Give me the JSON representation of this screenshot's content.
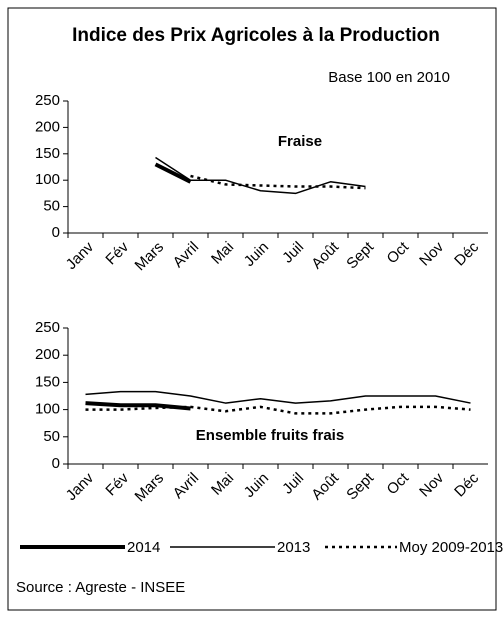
{
  "title": "Indice des Prix Agricoles à la Production",
  "subtitle": "Base 100 en 2010",
  "source": "Source : Agreste - INSEE",
  "chart_data": [
    {
      "type": "line",
      "title": "Fraise",
      "title_position": "inside",
      "categories": [
        "Janv",
        "Fév",
        "Mars",
        "Avril",
        "Mai",
        "Juin",
        "Juil",
        "Août",
        "Sept",
        "Oct",
        "Nov",
        "Déc"
      ],
      "ylim": [
        0,
        250
      ],
      "yticks": [
        0,
        50,
        100,
        150,
        200,
        250
      ],
      "series": [
        {
          "name": "2014",
          "color": "#000000",
          "style": "thick",
          "values": [
            null,
            null,
            130,
            97,
            null,
            null,
            null,
            null,
            null,
            null,
            null,
            null
          ]
        },
        {
          "name": "2013",
          "color": "#000000",
          "style": "solid",
          "values": [
            null,
            null,
            143,
            100,
            100,
            80,
            75,
            97,
            88,
            null,
            null,
            null
          ]
        },
        {
          "name": "Moy 2009-2013",
          "color": "#000000",
          "style": "dotted",
          "values": [
            null,
            null,
            null,
            108,
            92,
            90,
            88,
            88,
            85,
            null,
            null,
            null
          ]
        }
      ]
    },
    {
      "type": "line",
      "title": "Ensemble fruits frais",
      "title_position": "inside",
      "categories": [
        "Janv",
        "Fév",
        "Mars",
        "Avril",
        "Mai",
        "Juin",
        "Juil",
        "Août",
        "Sept",
        "Oct",
        "Nov",
        "Déc"
      ],
      "ylim": [
        0,
        250
      ],
      "yticks": [
        0,
        50,
        100,
        150,
        200,
        250
      ],
      "series": [
        {
          "name": "2014",
          "color": "#000000",
          "style": "thick",
          "values": [
            112,
            108,
            108,
            102,
            null,
            null,
            null,
            null,
            null,
            null,
            null,
            null
          ]
        },
        {
          "name": "2013",
          "color": "#000000",
          "style": "solid",
          "values": [
            128,
            133,
            133,
            125,
            112,
            120,
            112,
            116,
            125,
            125,
            125,
            112
          ]
        },
        {
          "name": "Moy 2009-2013",
          "color": "#000000",
          "style": "dotted",
          "values": [
            100,
            100,
            103,
            105,
            97,
            105,
            93,
            93,
            100,
            105,
            105,
            100
          ]
        }
      ]
    }
  ]
}
